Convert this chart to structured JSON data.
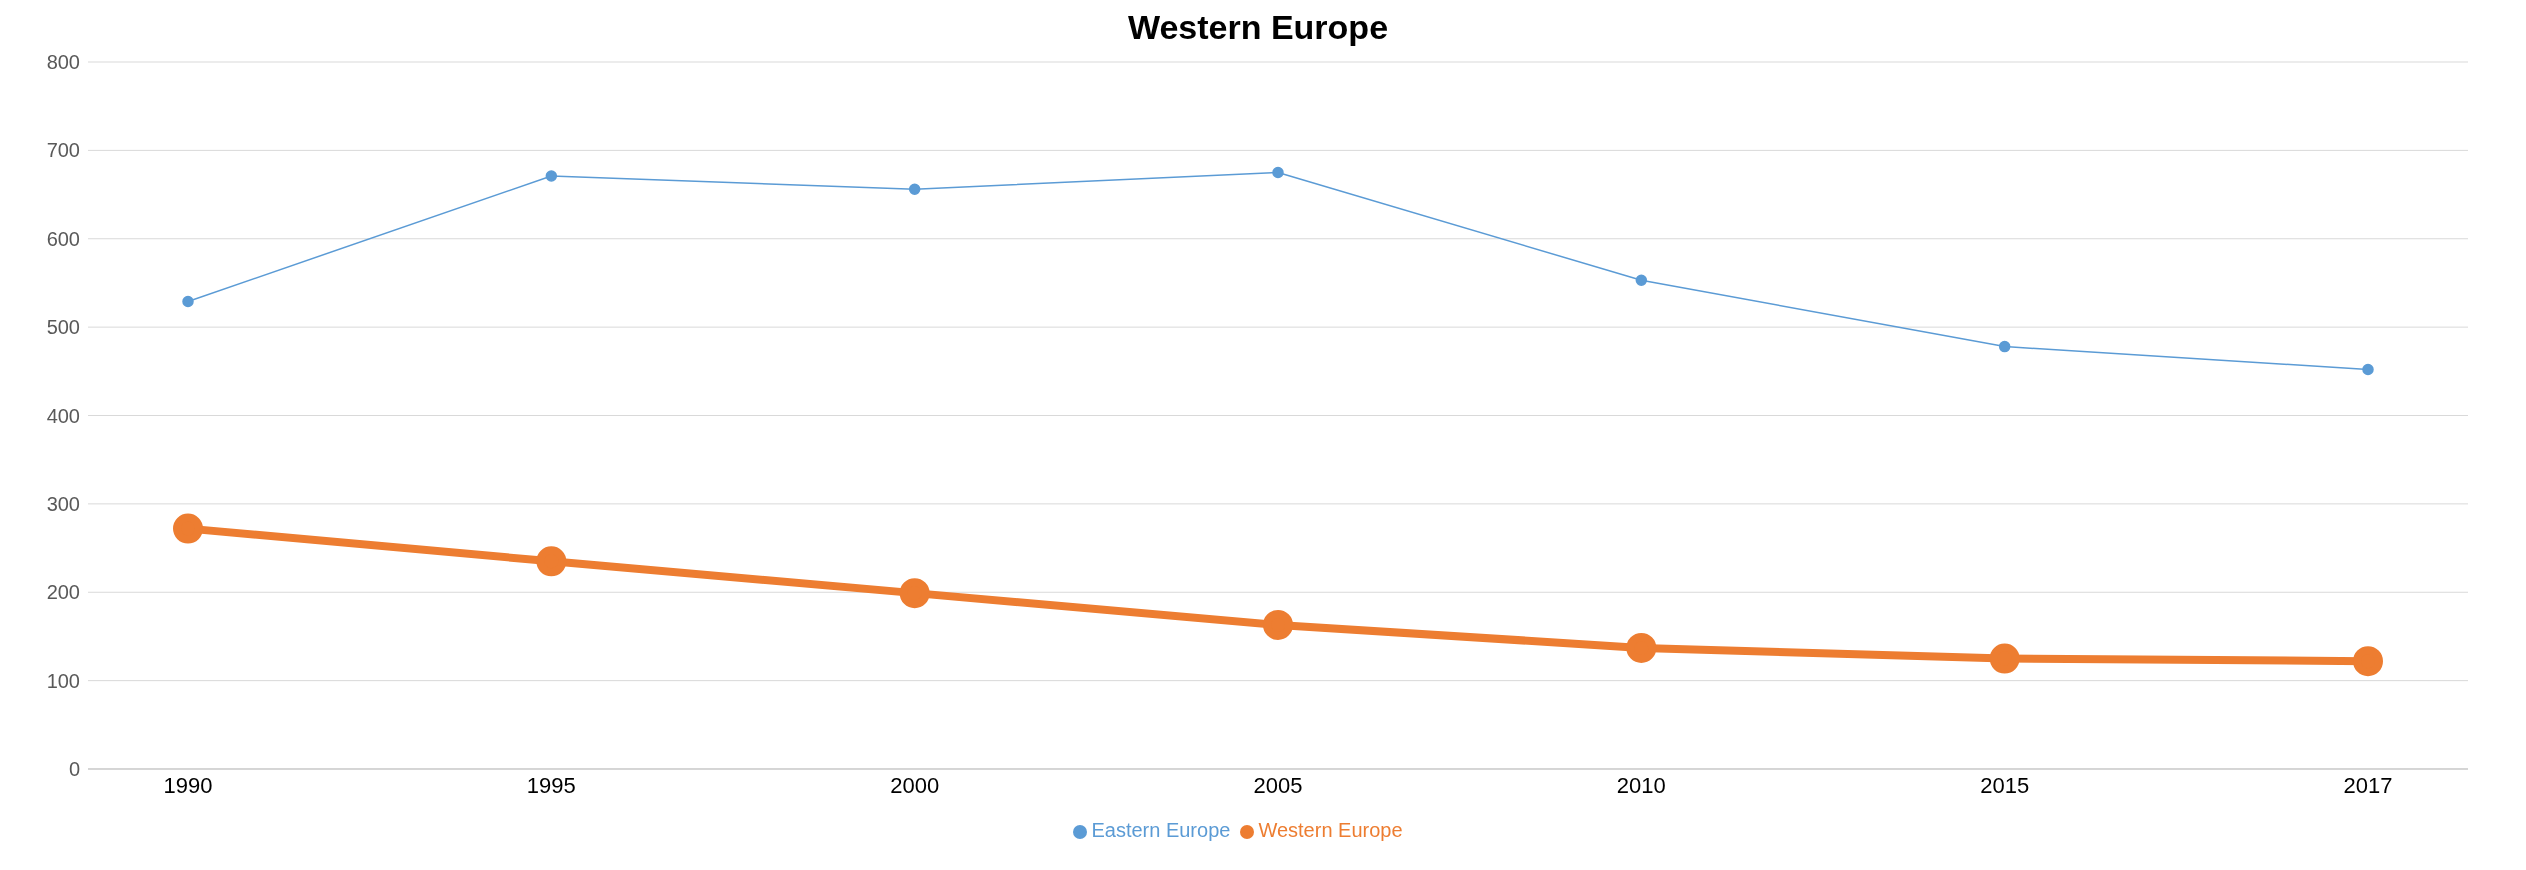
{
  "chart_data": {
    "type": "line",
    "title": "Western Europe",
    "categories": [
      "1990",
      "1995",
      "2000",
      "2005",
      "2010",
      "2015",
      "2017"
    ],
    "series": [
      {
        "name": "Eastern Europe",
        "color": "#5b9bd5",
        "values": [
          529,
          671,
          656,
          675,
          553,
          478,
          452
        ]
      },
      {
        "name": "Western Europe",
        "color": "#ed7d31",
        "values": [
          272,
          235,
          199,
          163,
          137,
          125,
          122
        ]
      }
    ],
    "ylim": [
      0,
      800
    ],
    "yticks": [
      0,
      100,
      200,
      300,
      400,
      500,
      600,
      700,
      800
    ],
    "grid": "y",
    "legend": "bottom",
    "marker": "circle",
    "line_style": "solid"
  }
}
